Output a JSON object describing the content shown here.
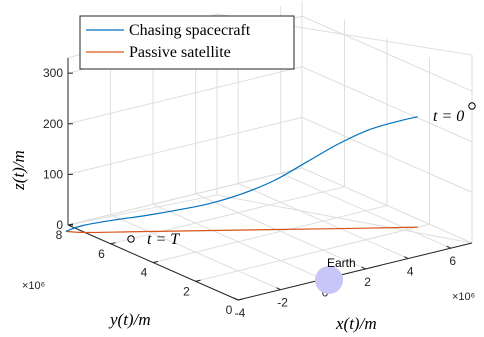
{
  "chart_data": {
    "type": "line",
    "projection": "3d",
    "grid": true,
    "legend_position": "top-left",
    "xlabel": "x(t)/m",
    "ylabel": "y(t)/m",
    "zlabel": "z(t)/m",
    "x_ticks": [
      "-4",
      "-2",
      "0",
      "2",
      "4",
      "6"
    ],
    "x_exponent": "×10⁶",
    "y_ticks": [
      "0",
      "2",
      "4",
      "6",
      "8"
    ],
    "y_exponent": "×10⁶",
    "z_ticks": [
      "0",
      "100",
      "200",
      "300"
    ],
    "xlim": [
      -4000000,
      7000000
    ],
    "ylim": [
      0,
      8000000
    ],
    "zlim": [
      0,
      330
    ],
    "series": [
      {
        "name": "Chasing spacecraft",
        "color": "#0072BD",
        "x": [
          6450000,
          6000000,
          5000000,
          4000000,
          3000000,
          2000000,
          1000000,
          0,
          -1000000,
          -2000000,
          -3000000,
          -4000000,
          -4500000
        ],
        "y": [
          2000000,
          2300000,
          2800000,
          3300000,
          3800000,
          4300000,
          4800000,
          5300000,
          5800000,
          6300000,
          6800000,
          7300000,
          7600000
        ],
        "z": [
          218,
          210,
          193,
          165,
          130,
          95,
          70,
          52,
          40,
          30,
          22,
          12,
          0
        ]
      },
      {
        "name": "Passive satellite",
        "color": "#D95319",
        "x": [
          6450000,
          5000000,
          3500000,
          2000000,
          500000,
          -1000000,
          -2500000,
          -4000000,
          -4500000
        ],
        "y": [
          2000000,
          2700000,
          3450000,
          4200000,
          4950000,
          5700000,
          6450000,
          7200000,
          7600000
        ],
        "z": [
          0,
          0,
          0,
          0,
          0,
          0,
          0,
          0,
          0
        ]
      }
    ],
    "annotations": [
      {
        "text": "t = 0",
        "at": "chasing spacecraft start"
      },
      {
        "text": "t = T",
        "at": "chasing spacecraft end"
      }
    ],
    "earth": {
      "label": "Earth",
      "color": "#c7c6f7"
    }
  }
}
